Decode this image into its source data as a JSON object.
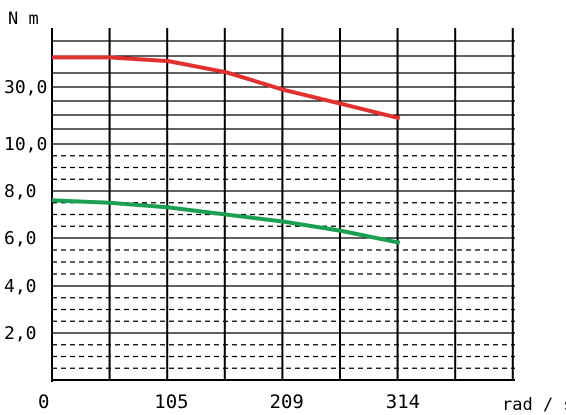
{
  "chart_data": {
    "type": "line",
    "title": "",
    "ylabel": "N m",
    "xlabel": "rad / s",
    "x_ticks": [
      "0",
      "105",
      "209",
      "314"
    ],
    "y_ticks": [
      {
        "label": "30,0",
        "value": 30
      },
      {
        "label": "10,0",
        "value": 10
      },
      {
        "label": "8,0",
        "value": 8
      },
      {
        "label": "6,0",
        "value": 6
      },
      {
        "label": "4,0",
        "value": 4
      },
      {
        "label": "2,0",
        "value": 2
      }
    ],
    "xlim": [
      0,
      418
    ],
    "grid": true,
    "note": "non-linear y axis: upper band 10,0 to 30,0 compressed",
    "series": [
      {
        "color": "#e03030",
        "x": [
          0,
          52,
          105,
          157,
          209,
          262,
          314
        ],
        "y": [
          38.0,
          38.0,
          37.0,
          34.0,
          29.0,
          24.0,
          19.0
        ]
      },
      {
        "color": "#1aa050",
        "x": [
          0,
          52,
          105,
          157,
          209,
          262,
          314
        ],
        "y": [
          7.6,
          7.5,
          7.3,
          7.0,
          6.7,
          6.3,
          5.8
        ]
      }
    ]
  }
}
